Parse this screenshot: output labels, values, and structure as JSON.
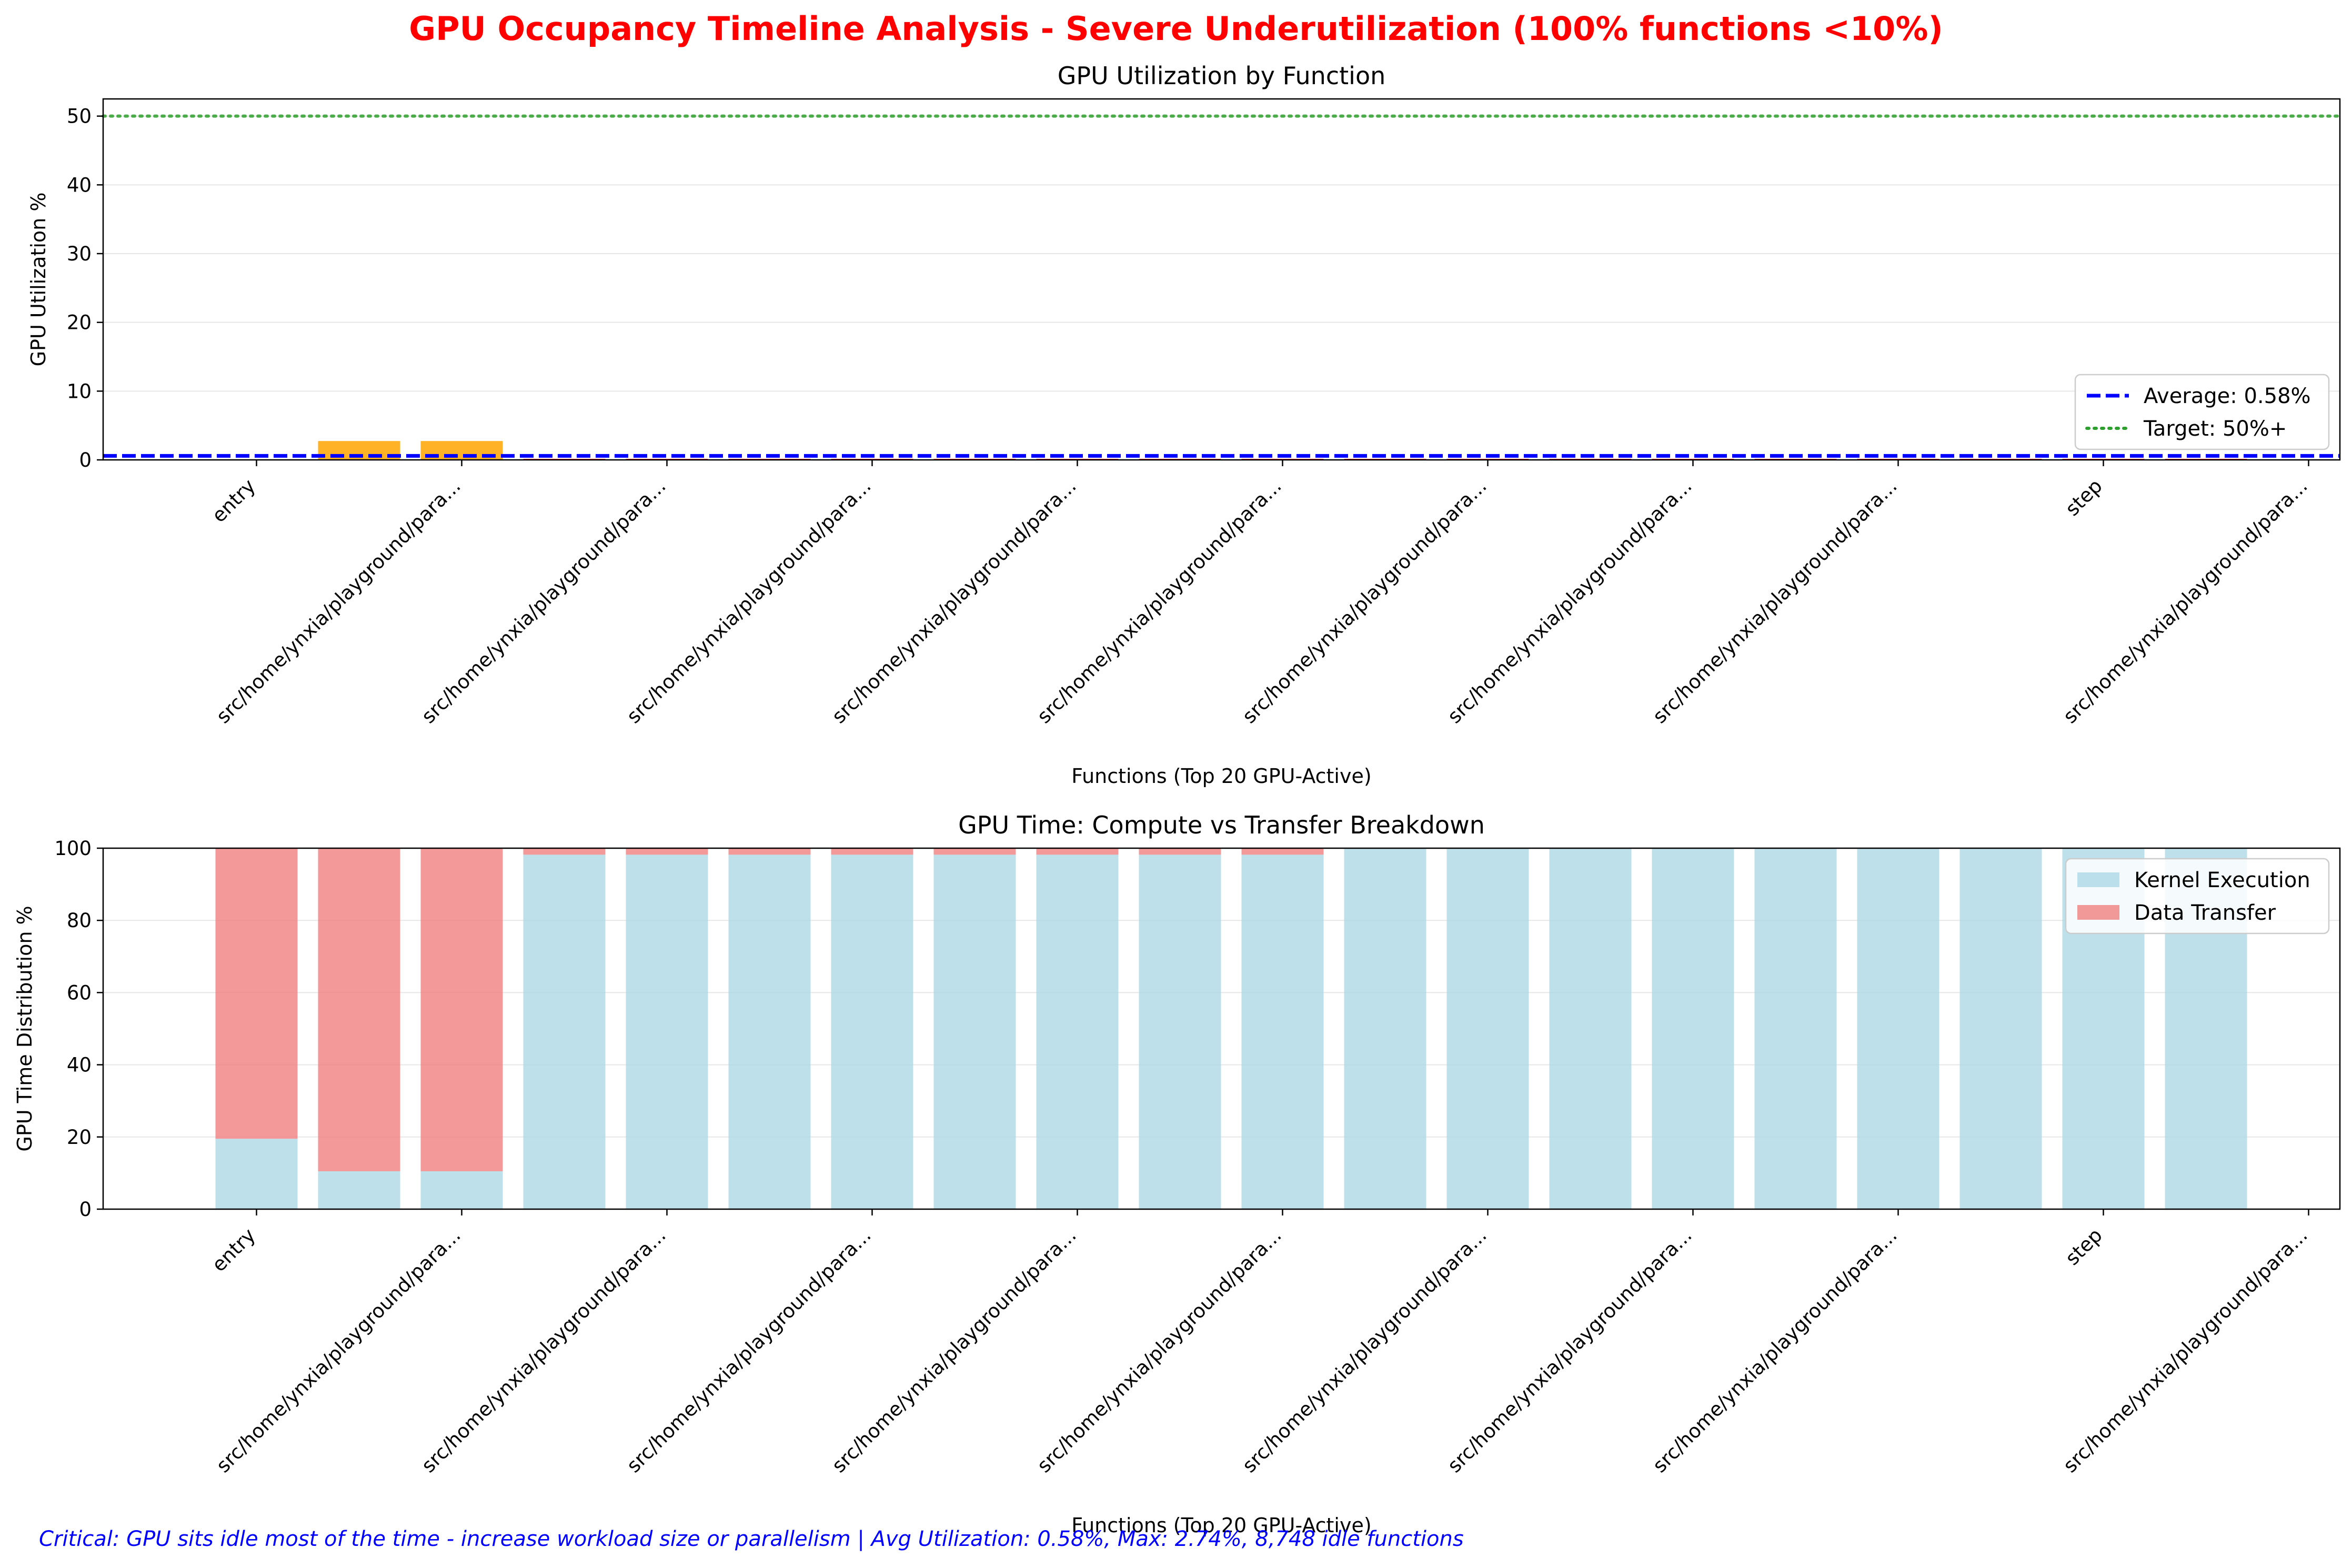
{
  "figure": {
    "suptitle": "GPU Occupancy Timeline Analysis - Severe Underutilization (100% functions <10%)",
    "footnote": "Critical: GPU sits idle most of the time - increase workload size or parallelism | Avg Utilization: 0.58%, Max: 2.74%, 8,748 idle functions",
    "colors": {
      "title": "#ff0000",
      "footnote": "#0000ff",
      "util_bar_high": "#ffa500",
      "util_bar_low": "#ff0000",
      "average_line": "#0000ff",
      "target_line": "#2ca02c",
      "kernel": "#add8e6",
      "transfer": "#f08080"
    }
  },
  "chart_data": [
    {
      "type": "bar",
      "title": "GPU Utilization by Function",
      "xlabel": "Functions (Top 20 GPU-Active)",
      "ylabel": "GPU Utilization %",
      "ylim": [
        0,
        52.5
      ],
      "yticks": [
        0,
        10,
        20,
        30,
        40,
        50
      ],
      "grid": "y",
      "tick_labels": [
        "entry",
        "src/home/ynxia/playground/para...",
        "src/home/ynxia/playground/para...",
        "src/home/ynxia/playground/para...",
        "src/home/ynxia/playground/para...",
        "src/home/ynxia/playground/para...",
        "src/home/ynxia/playground/para...",
        "src/home/ynxia/playground/para...",
        "src/home/ynxia/playground/para...",
        "step",
        "src/home/ynxia/playground/para..."
      ],
      "values": [
        0.02,
        2.74,
        2.74,
        0.15,
        0.15,
        0.15,
        0.15,
        0.15,
        0.15,
        0.15,
        0.15,
        0.15,
        0.15,
        0.15,
        0.15,
        0.15,
        0.15,
        0.15,
        0.15,
        0.15
      ],
      "bar_colors": [
        "low",
        "high",
        "high",
        "low",
        "low",
        "low",
        "low",
        "low",
        "low",
        "low",
        "low",
        "low",
        "low",
        "low",
        "low",
        "low",
        "low",
        "low",
        "low",
        "low"
      ],
      "reference_lines": [
        {
          "label": "Average: 0.58%",
          "value": 0.58,
          "style": "dashed",
          "color": "average_line"
        },
        {
          "label": "Target: 50%+",
          "value": 50,
          "style": "dotted",
          "color": "target_line"
        }
      ],
      "legend_loc": "lower-right"
    },
    {
      "type": "bar",
      "stacked": true,
      "title": "GPU Time: Compute vs Transfer Breakdown",
      "xlabel": "Functions (Top 20 GPU-Active)",
      "ylabel": "GPU Time Distribution %",
      "ylim": [
        0,
        100
      ],
      "yticks": [
        0,
        20,
        40,
        60,
        80,
        100
      ],
      "grid": "y",
      "tick_labels": [
        "entry",
        "src/home/ynxia/playground/para...",
        "src/home/ynxia/playground/para...",
        "src/home/ynxia/playground/para...",
        "src/home/ynxia/playground/para...",
        "src/home/ynxia/playground/para...",
        "src/home/ynxia/playground/para...",
        "src/home/ynxia/playground/para...",
        "src/home/ynxia/playground/para...",
        "step",
        "src/home/ynxia/playground/para..."
      ],
      "series": [
        {
          "name": "Kernel Execution",
          "color": "kernel",
          "values": [
            19.5,
            10.5,
            10.5,
            98.2,
            98.2,
            98.2,
            98.2,
            98.2,
            98.2,
            98.2,
            98.2,
            100,
            100,
            100,
            100,
            100,
            100,
            100,
            100,
            100
          ]
        },
        {
          "name": "Data Transfer",
          "color": "transfer",
          "values": [
            80.5,
            89.5,
            89.5,
            1.8,
            1.8,
            1.8,
            1.8,
            1.8,
            1.8,
            1.8,
            1.8,
            0,
            0,
            0,
            0,
            0,
            0,
            0,
            0,
            0
          ]
        }
      ],
      "legend_loc": "upper-right"
    }
  ]
}
